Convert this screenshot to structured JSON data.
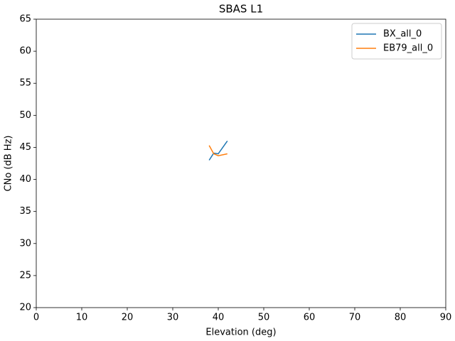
{
  "chart_data": {
    "type": "line",
    "title": "SBAS L1",
    "xlabel": "Elevation (deg)",
    "ylabel": "CNo (dB Hz)",
    "x": [
      38,
      39,
      40,
      42
    ],
    "series": [
      {
        "name": "BX_all_0",
        "color": "#1f77b4",
        "values": [
          43,
          44.1,
          44,
          46
        ]
      },
      {
        "name": "EB79_all_0",
        "color": "#ff7f0e",
        "values": [
          45.3,
          44,
          43.7,
          44
        ]
      }
    ],
    "xlim": [
      0,
      90
    ],
    "xticks": [
      0,
      10,
      20,
      30,
      40,
      50,
      60,
      70,
      80,
      90
    ],
    "ylim": [
      20,
      65
    ],
    "yticks": [
      20,
      25,
      30,
      35,
      40,
      45,
      50,
      55,
      60,
      65
    ],
    "grid": false,
    "legend": "upper right"
  }
}
